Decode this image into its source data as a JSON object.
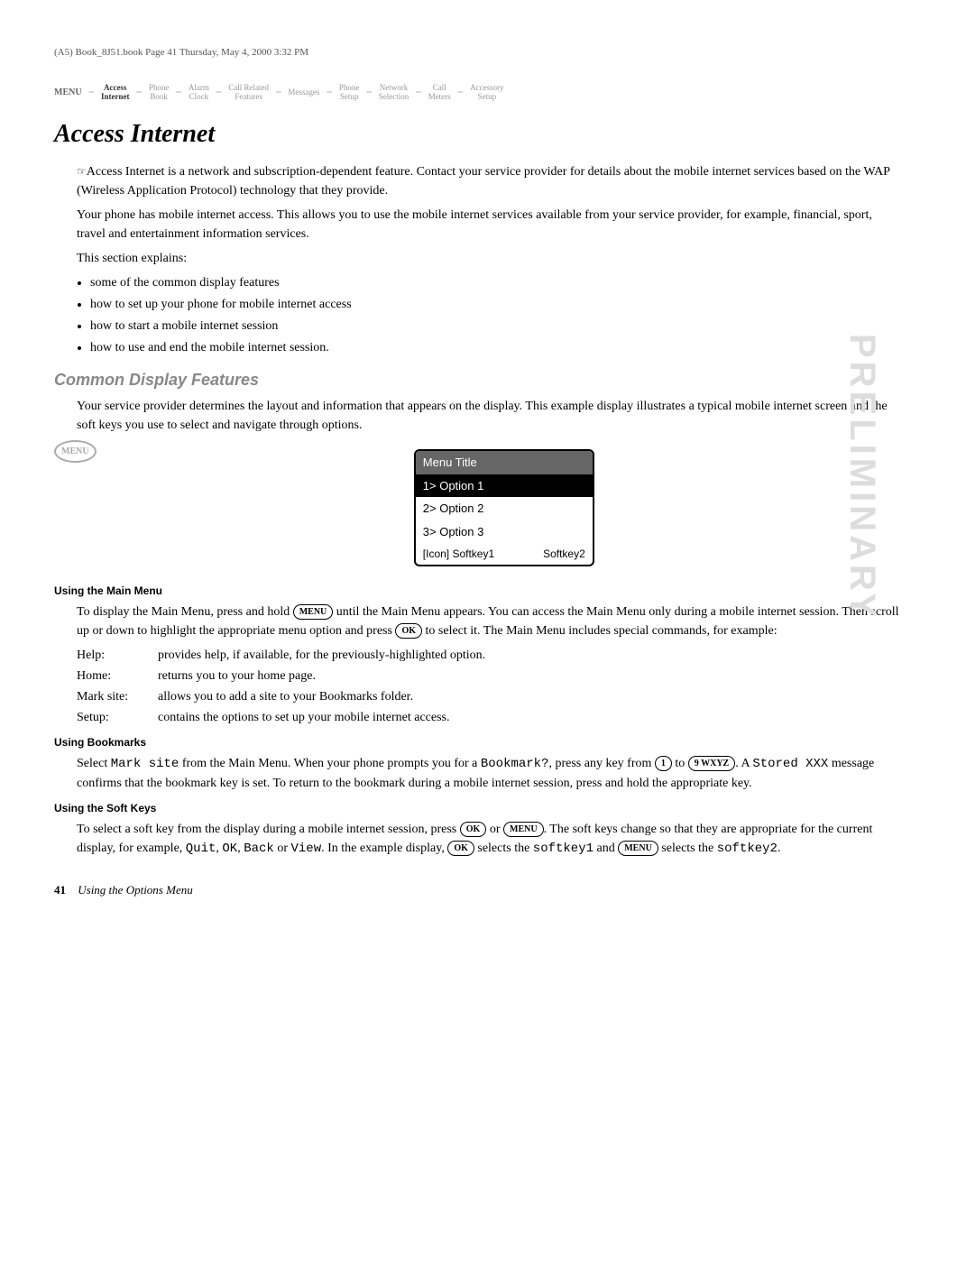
{
  "header_line": "(A5) Book_8J51.book  Page 41  Thursday, May 4, 2000  3:32 PM",
  "nav": {
    "menu": "MENU",
    "items": [
      {
        "l1": "Access",
        "l2": "Internet",
        "active": true
      },
      {
        "l1": "Phone",
        "l2": "Book"
      },
      {
        "l1": "Alarm",
        "l2": "Clock"
      },
      {
        "l1": "Call Related",
        "l2": "Features"
      },
      {
        "l1": "Messages",
        "l2": ""
      },
      {
        "l1": "Phone",
        "l2": "Setup"
      },
      {
        "l1": "Network",
        "l2": "Selection"
      },
      {
        "l1": "Call",
        "l2": "Meters"
      },
      {
        "l1": "Accessory",
        "l2": "Setup"
      }
    ]
  },
  "title": "Access Internet",
  "intro_p1_prefix": "☞",
  "intro_p1": "Access Internet is a network and subscription-dependent feature. Contact your service provider for details about the mobile internet services based on the WAP (Wireless Application Protocol) technology that they provide.",
  "intro_p2": "Your phone has mobile internet access. This allows you to use the mobile internet services available from your service provider, for example, financial, sport, travel and entertainment information services.",
  "intro_p3": "This section explains:",
  "bullets": [
    "some of the common display features",
    "how to set up your phone for mobile internet access",
    "how to start a mobile internet session",
    "how to use and end the mobile internet session."
  ],
  "section_common": "Common Display Features",
  "common_p": "Your service provider determines the layout and information that appears on the display. This example display illustrates a typical mobile internet screen and the soft keys you use to select and navigate through options.",
  "menu_badge": "MENU",
  "screen": {
    "title": "Menu Title",
    "opt1": "1> Option 1",
    "opt2": "2> Option 2",
    "opt3": "3> Option 3",
    "sk1": "[Icon]  Softkey1",
    "sk2": "Softkey2"
  },
  "sub_mainmenu": "Using the Main Menu",
  "mainmenu_p1a": "To display the Main Menu, press and hold ",
  "mainmenu_key1": "MENU",
  "mainmenu_p1b": " until the Main Menu appears. You can access the Main Menu only during a mobile internet session. Then scroll up or down to highlight the appropriate menu option and press ",
  "mainmenu_key2": "OK",
  "mainmenu_p1c": " to select it. The Main Menu includes special commands, for example:",
  "defs": [
    {
      "label": "Help:",
      "text": "provides help, if available, for the previously-highlighted option."
    },
    {
      "label": "Home:",
      "text": "returns you to your home page."
    },
    {
      "label": "Mark site:",
      "text": "allows you to add a site to your Bookmarks folder."
    },
    {
      "label": "Setup:",
      "text": "contains the options to set up your mobile internet access."
    }
  ],
  "sub_bookmarks": "Using Bookmarks",
  "bm_a": "Select ",
  "bm_mark": "Mark site",
  "bm_b": " from the Main Menu. When your phone prompts you for a ",
  "bm_bookmark": "Bookmark?",
  "bm_c": ", press any key from ",
  "bm_k1": "1",
  "bm_d": " to ",
  "bm_k9": "9 WXYZ",
  "bm_e": ". A ",
  "bm_stored": "Stored XXX",
  "bm_f": " message confirms that the bookmark key is set. To return to the bookmark during a mobile internet session, press and hold the appropriate key.",
  "sub_softkeys": "Using the Soft Keys",
  "sk_a": "To select a soft key from the display during a mobile internet session, press ",
  "sk_ok1": "OK",
  "sk_b": " or ",
  "sk_menu1": "MENU",
  "sk_c": ". The soft keys change so that they are appropriate for the current display, for example, ",
  "sk_quit": "Quit",
  "sk_comma1": ", ",
  "sk_okword": "OK",
  "sk_comma2": ", ",
  "sk_back": "Back",
  "sk_or": " or ",
  "sk_view": "View",
  "sk_d": ". In the example display, ",
  "sk_ok2": "OK",
  "sk_e": " selects the ",
  "sk_sk1": "softkey1",
  "sk_f": " and ",
  "sk_menu2": "MENU",
  "sk_g": " selects the ",
  "sk_sk2": "softkey2",
  "sk_h": ".",
  "sidebar": "PRELIMINARY",
  "footer_page": "41",
  "footer_section": "Using the Options Menu"
}
